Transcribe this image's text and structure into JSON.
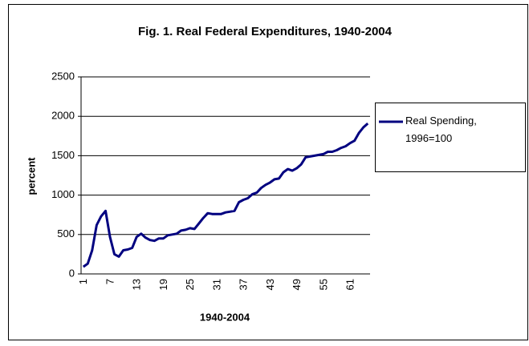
{
  "chart_data": {
    "type": "line",
    "title": "Fig. 1. Real Federal Expenditures, 1940-2004",
    "x_label": "1940-2004",
    "y_label": "percent",
    "categories": [
      1,
      null,
      null,
      null,
      null,
      null,
      7,
      null,
      null,
      null,
      null,
      null,
      13,
      null,
      null,
      null,
      null,
      null,
      19,
      null,
      null,
      null,
      null,
      null,
      25,
      null,
      null,
      null,
      null,
      null,
      31,
      null,
      null,
      null,
      null,
      null,
      37,
      null,
      null,
      null,
      null,
      null,
      43,
      null,
      null,
      null,
      null,
      null,
      49,
      null,
      null,
      null,
      null,
      null,
      55,
      null,
      null,
      null,
      null,
      null,
      61,
      null,
      null,
      null,
      null
    ],
    "series": [
      {
        "name": "Real Spending, 1996=100",
        "color": "#000080",
        "values": [
          90,
          130,
          300,
          620,
          730,
          800,
          470,
          250,
          220,
          300,
          310,
          330,
          470,
          510,
          460,
          430,
          420,
          450,
          450,
          490,
          500,
          510,
          550,
          560,
          580,
          570,
          640,
          710,
          770,
          760,
          760,
          760,
          780,
          790,
          800,
          910,
          940,
          960,
          1010,
          1030,
          1090,
          1130,
          1160,
          1200,
          1210,
          1290,
          1330,
          1310,
          1340,
          1390,
          1480,
          1490,
          1500,
          1510,
          1520,
          1550,
          1550,
          1570,
          1600,
          1620,
          1660,
          1690,
          1790,
          1860,
          1910
        ]
      }
    ],
    "ylim": [
      0,
      2500
    ],
    "yticks": [
      0,
      500,
      1000,
      1500,
      2000,
      2500
    ],
    "grid": true,
    "legend": "right"
  }
}
